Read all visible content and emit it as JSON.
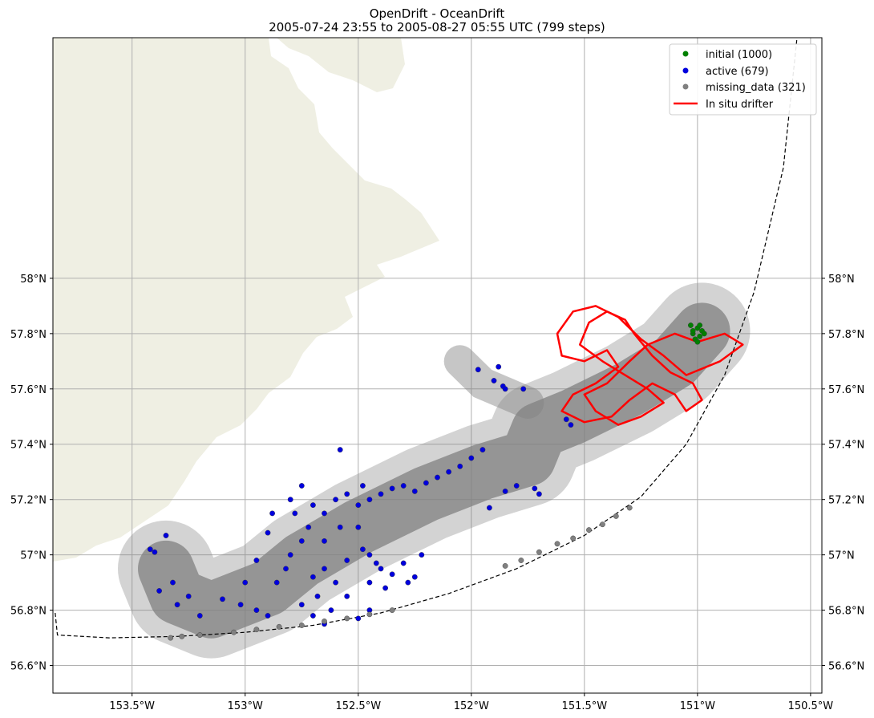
{
  "title": {
    "line1": "OpenDrift - OceanDrift",
    "line2": "2005-07-24 23:55 to 2005-08-27 05:55 UTC (799 steps)"
  },
  "colors": {
    "land": "#efefe3",
    "grid": "#b0b0b0",
    "trajectory": "#808080",
    "initial": "#008000",
    "active": "#0000dd",
    "missing": "#808080",
    "drifter": "#ff0000"
  },
  "chart_data": {
    "type": "scatter",
    "map": true,
    "grid": true,
    "legend_position": "top-right",
    "xlim": [
      -153.85,
      -150.45
    ],
    "ylim": [
      56.5,
      58.87
    ],
    "x_ticks": [
      -153.5,
      -153.0,
      -152.5,
      -152.0,
      -151.5,
      -151.0,
      -150.5
    ],
    "x_tick_labels": [
      "153.5°W",
      "153°W",
      "152.5°W",
      "152°W",
      "151.5°W",
      "151°W",
      "150.5°W"
    ],
    "y_ticks": [
      56.6,
      56.8,
      57.0,
      57.2,
      57.4,
      57.6,
      57.8,
      58.0
    ],
    "y_tick_labels": [
      "56.6°N",
      "56.8°N",
      "57°N",
      "57.2°N",
      "57.4°N",
      "57.6°N",
      "57.8°N",
      "58°N"
    ],
    "legend": [
      {
        "label": "initial (1000)",
        "marker": "dot",
        "color": "#008000"
      },
      {
        "label": "active (679)",
        "marker": "dot",
        "color": "#0000dd"
      },
      {
        "label": "missing_data (321)",
        "marker": "dot",
        "color": "#808080"
      },
      {
        "label": "In situ drifter",
        "marker": "line",
        "color": "#ff0000"
      }
    ],
    "domain_boundary": {
      "style": "dashed",
      "points": [
        [
          -153.84,
          56.79
        ],
        [
          -153.83,
          56.71
        ],
        [
          -153.6,
          56.7
        ],
        [
          -153.3,
          56.705
        ],
        [
          -153.0,
          56.72
        ],
        [
          -152.7,
          56.745
        ],
        [
          -152.4,
          56.79
        ],
        [
          -152.1,
          56.86
        ],
        [
          -151.8,
          56.95
        ],
        [
          -151.5,
          57.07
        ],
        [
          -151.25,
          57.21
        ],
        [
          -151.05,
          57.4
        ],
        [
          -150.88,
          57.65
        ],
        [
          -150.75,
          57.95
        ],
        [
          -150.62,
          58.4
        ],
        [
          -150.56,
          58.87
        ]
      ]
    },
    "series": [
      {
        "name": "initial (1000)",
        "points": [
          [
            -151.02,
            57.8
          ],
          [
            -151.0,
            57.82
          ],
          [
            -150.99,
            57.79
          ],
          [
            -151.01,
            57.78
          ],
          [
            -150.98,
            57.81
          ],
          [
            -151.03,
            57.83
          ],
          [
            -150.97,
            57.8
          ],
          [
            -151.0,
            57.77
          ],
          [
            -151.02,
            57.81
          ],
          [
            -150.99,
            57.83
          ]
        ]
      },
      {
        "name": "active (679)",
        "points": [
          [
            -153.35,
            57.07
          ],
          [
            -153.4,
            57.01
          ],
          [
            -153.42,
            57.02
          ],
          [
            -153.32,
            56.9
          ],
          [
            -153.38,
            56.87
          ],
          [
            -153.3,
            56.82
          ],
          [
            -153.25,
            56.85
          ],
          [
            -153.2,
            56.78
          ],
          [
            -153.1,
            56.84
          ],
          [
            -153.02,
            56.82
          ],
          [
            -152.95,
            56.8
          ],
          [
            -152.9,
            56.78
          ],
          [
            -152.86,
            56.9
          ],
          [
            -152.82,
            56.95
          ],
          [
            -152.8,
            57.0
          ],
          [
            -152.75,
            57.05
          ],
          [
            -152.72,
            57.1
          ],
          [
            -152.7,
            56.92
          ],
          [
            -152.68,
            56.85
          ],
          [
            -152.65,
            56.95
          ],
          [
            -152.78,
            57.15
          ],
          [
            -152.8,
            57.2
          ],
          [
            -152.75,
            57.25
          ],
          [
            -152.7,
            57.18
          ],
          [
            -152.65,
            57.15
          ],
          [
            -152.6,
            57.2
          ],
          [
            -152.55,
            57.22
          ],
          [
            -152.5,
            57.18
          ],
          [
            -152.48,
            57.25
          ],
          [
            -152.45,
            57.2
          ],
          [
            -152.4,
            57.22
          ],
          [
            -152.35,
            57.24
          ],
          [
            -152.3,
            57.25
          ],
          [
            -152.25,
            57.23
          ],
          [
            -152.2,
            57.26
          ],
          [
            -152.15,
            57.28
          ],
          [
            -152.1,
            57.3
          ],
          [
            -152.05,
            57.32
          ],
          [
            -152.0,
            57.35
          ],
          [
            -151.95,
            57.38
          ],
          [
            -152.58,
            57.38
          ],
          [
            -152.45,
            57.0
          ],
          [
            -152.4,
            56.95
          ],
          [
            -152.35,
            56.93
          ],
          [
            -152.45,
            56.9
          ],
          [
            -152.3,
            56.97
          ],
          [
            -152.25,
            56.92
          ],
          [
            -152.38,
            56.88
          ],
          [
            -152.42,
            56.97
          ],
          [
            -152.48,
            57.02
          ],
          [
            -152.55,
            56.98
          ],
          [
            -152.6,
            56.9
          ],
          [
            -152.55,
            56.85
          ],
          [
            -152.62,
            56.8
          ],
          [
            -152.7,
            56.78
          ],
          [
            -152.75,
            56.82
          ],
          [
            -152.28,
            56.9
          ],
          [
            -152.22,
            57.0
          ],
          [
            -152.5,
            57.1
          ],
          [
            -152.58,
            57.1
          ],
          [
            -152.65,
            57.05
          ],
          [
            -151.97,
            57.67
          ],
          [
            -151.88,
            57.68
          ],
          [
            -151.9,
            57.63
          ],
          [
            -151.86,
            57.61
          ],
          [
            -151.85,
            57.6
          ],
          [
            -151.77,
            57.6
          ],
          [
            -151.58,
            57.49
          ],
          [
            -151.56,
            57.47
          ],
          [
            -151.8,
            57.25
          ],
          [
            -151.85,
            57.23
          ],
          [
            -151.92,
            57.17
          ],
          [
            -151.7,
            57.22
          ],
          [
            -151.72,
            57.24
          ],
          [
            -152.88,
            57.15
          ],
          [
            -152.9,
            57.08
          ],
          [
            -152.95,
            56.98
          ],
          [
            -153.0,
            56.9
          ],
          [
            -152.65,
            56.75
          ],
          [
            -152.5,
            56.77
          ],
          [
            -152.45,
            56.8
          ]
        ]
      },
      {
        "name": "missing_data (321)",
        "points": [
          [
            -153.33,
            56.7
          ],
          [
            -153.28,
            56.705
          ],
          [
            -153.2,
            56.71
          ],
          [
            -153.05,
            56.72
          ],
          [
            -152.95,
            56.73
          ],
          [
            -152.85,
            56.74
          ],
          [
            -152.75,
            56.745
          ],
          [
            -152.65,
            56.76
          ],
          [
            -152.55,
            56.77
          ],
          [
            -152.45,
            56.785
          ],
          [
            -152.35,
            56.8
          ],
          [
            -151.85,
            56.96
          ],
          [
            -151.78,
            56.98
          ],
          [
            -151.7,
            57.01
          ],
          [
            -151.62,
            57.04
          ],
          [
            -151.55,
            57.06
          ],
          [
            -151.48,
            57.09
          ],
          [
            -151.42,
            57.11
          ],
          [
            -151.36,
            57.14
          ],
          [
            -151.3,
            57.17
          ]
        ]
      }
    ],
    "in_situ_drifter": {
      "name": "In situ drifter",
      "path": [
        [
          -151.0,
          57.77
        ],
        [
          -150.88,
          57.8
        ],
        [
          -150.8,
          57.76
        ],
        [
          -150.9,
          57.7
        ],
        [
          -151.05,
          57.65
        ],
        [
          -151.15,
          57.72
        ],
        [
          -151.25,
          57.78
        ],
        [
          -151.35,
          57.86
        ],
        [
          -151.45,
          57.9
        ],
        [
          -151.55,
          57.88
        ],
        [
          -151.62,
          57.8
        ],
        [
          -151.6,
          57.72
        ],
        [
          -151.5,
          57.7
        ],
        [
          -151.4,
          57.74
        ],
        [
          -151.35,
          57.68
        ],
        [
          -151.45,
          57.62
        ],
        [
          -151.55,
          57.58
        ],
        [
          -151.6,
          57.52
        ],
        [
          -151.5,
          57.48
        ],
        [
          -151.38,
          57.5
        ],
        [
          -151.3,
          57.56
        ],
        [
          -151.2,
          57.62
        ],
        [
          -151.1,
          57.58
        ],
        [
          -151.05,
          57.52
        ],
        [
          -150.98,
          57.56
        ],
        [
          -151.02,
          57.62
        ],
        [
          -151.12,
          57.66
        ],
        [
          -151.2,
          57.72
        ],
        [
          -151.28,
          57.8
        ],
        [
          -151.32,
          57.85
        ],
        [
          -151.4,
          57.88
        ],
        [
          -151.48,
          57.84
        ],
        [
          -151.52,
          57.76
        ],
        [
          -151.42,
          57.7
        ],
        [
          -151.32,
          57.65
        ],
        [
          -151.22,
          57.6
        ],
        [
          -151.15,
          57.55
        ],
        [
          -151.25,
          57.5
        ],
        [
          -151.35,
          57.47
        ],
        [
          -151.45,
          57.52
        ],
        [
          -151.5,
          57.58
        ],
        [
          -151.4,
          57.62
        ],
        [
          -151.3,
          57.7
        ],
        [
          -151.22,
          57.76
        ],
        [
          -151.1,
          57.8
        ],
        [
          -151.0,
          57.77
        ]
      ]
    }
  }
}
